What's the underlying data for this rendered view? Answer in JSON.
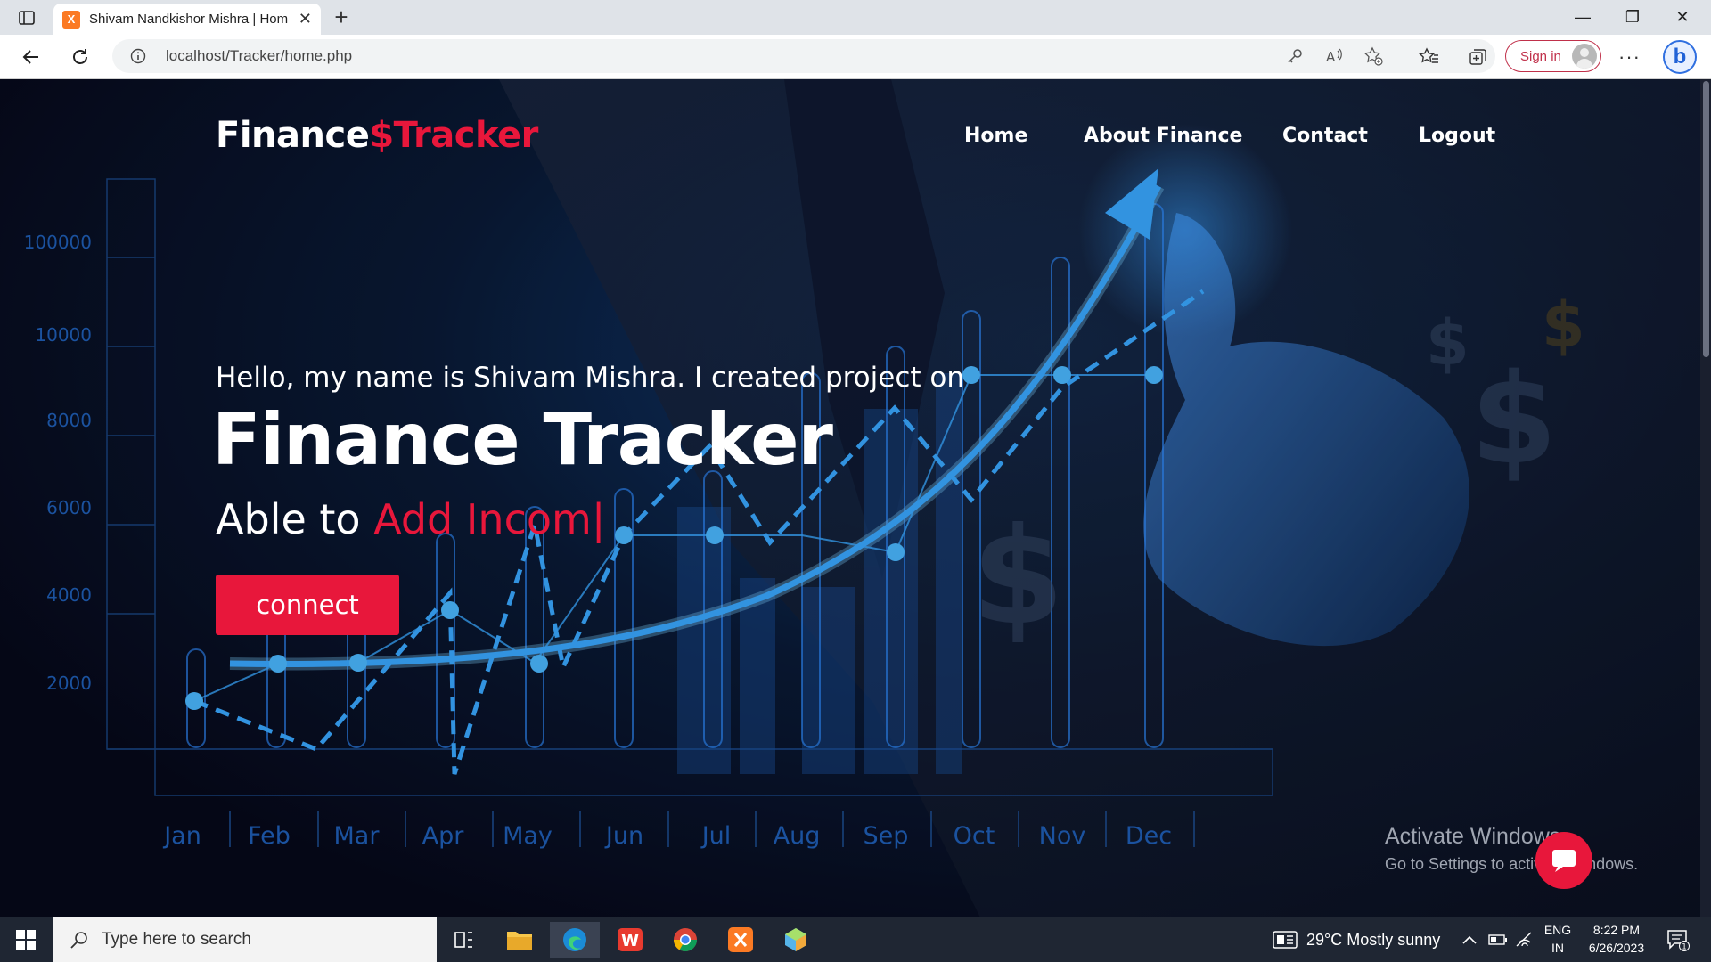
{
  "browser": {
    "tab_title": "Shivam Nandkishor Mishra | Hom",
    "url": "localhost/Tracker/home.php",
    "sign_in": "Sign in"
  },
  "site": {
    "logo_part1": "Finance",
    "logo_part2": "$Tracker",
    "nav": [
      "Home",
      "About Finance",
      "Contact",
      "Logout"
    ],
    "intro": "Hello, my name is Shivam Mishra. I created project on",
    "headline": "Finance Tracker",
    "typed_prefix": "Able to",
    "typed_text": "Add Incom|",
    "cta": "connect",
    "accent_color": "#e8173b"
  },
  "background_chart": {
    "y_ticks": [
      "100000",
      "10000",
      "8000",
      "6000",
      "4000",
      "2000"
    ],
    "months": [
      "Jan",
      "Feb",
      "Mar",
      "Apr",
      "May",
      "Jun",
      "Jul",
      "Aug",
      "Sep",
      "Oct",
      "Nov",
      "Dec"
    ]
  },
  "watermark": {
    "line1": "Activate Windows",
    "line2": "Go to Settings to activate Windows."
  },
  "taskbar": {
    "search_placeholder": "Type here to search",
    "weather": "29°C  Mostly sunny",
    "lang1": "ENG",
    "lang2": "IN",
    "time": "8:22 PM",
    "date": "6/26/2023",
    "notification_count": "1"
  }
}
